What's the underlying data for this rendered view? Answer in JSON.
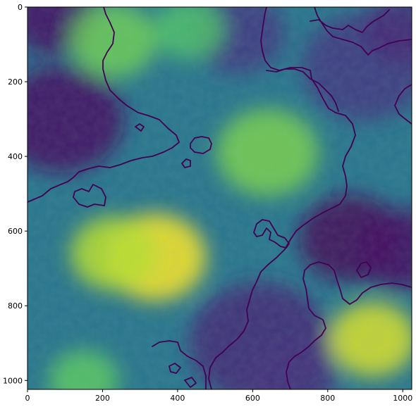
{
  "chart_data": {
    "type": "heatmap",
    "title": "",
    "xlabel": "",
    "ylabel": "",
    "colormap": "viridis",
    "image_shape": [
      1024,
      1024
    ],
    "xlim": [
      0,
      1024
    ],
    "ylim": [
      1024,
      0
    ],
    "xticks": [
      0,
      200,
      400,
      600,
      800,
      1000
    ],
    "yticks": [
      0,
      200,
      400,
      600,
      800,
      1000
    ],
    "xtick_labels": [
      "0",
      "200",
      "400",
      "600",
      "800",
      "1000"
    ],
    "ytick_labels": [
      "0",
      "200",
      "400",
      "600",
      "800",
      "1000"
    ],
    "grid": false,
    "legend": "none",
    "colorbar": false,
    "features": {
      "high_value_regions": [
        {
          "center": [
            340,
            670
          ],
          "radius": 130,
          "value": 1.0
        },
        {
          "center": [
            230,
            660
          ],
          "radius": 110,
          "value": 0.9
        },
        {
          "center": [
            920,
            890
          ],
          "radius": 110,
          "value": 0.95
        },
        {
          "center": [
            640,
            390
          ],
          "radius": 130,
          "value": 0.8
        },
        {
          "center": [
            230,
            90
          ],
          "radius": 110,
          "value": 0.78
        },
        {
          "center": [
            430,
            60
          ],
          "radius": 90,
          "value": 0.72
        },
        {
          "center": [
            150,
            1000
          ],
          "radius": 90,
          "value": 0.75
        }
      ],
      "low_value_regions": [
        {
          "center": [
            90,
            300
          ],
          "radius": 160,
          "value": 0.05
        },
        {
          "center": [
            70,
            30
          ],
          "radius": 110,
          "value": 0.05
        },
        {
          "center": [
            860,
            620
          ],
          "radius": 130,
          "value": 0.02
        },
        {
          "center": [
            1000,
            650
          ],
          "radius": 120,
          "value": 0.05
        },
        {
          "center": [
            620,
            900
          ],
          "radius": 180,
          "value": 0.12
        },
        {
          "center": [
            700,
            1000
          ],
          "radius": 120,
          "value": 0.15
        },
        {
          "center": [
            560,
            70
          ],
          "radius": 120,
          "value": 0.18
        },
        {
          "center": [
            900,
            160
          ],
          "radius": 160,
          "value": 0.18
        },
        {
          "center": [
            1000,
            60
          ],
          "radius": 100,
          "value": 0.12
        }
      ]
    }
  },
  "colors": {
    "viridis_low": "#440154",
    "viridis_mid": "#21918c",
    "viridis_high": "#fde725",
    "contour": "#440154",
    "axes": "#000000",
    "background": "#ffffff"
  }
}
